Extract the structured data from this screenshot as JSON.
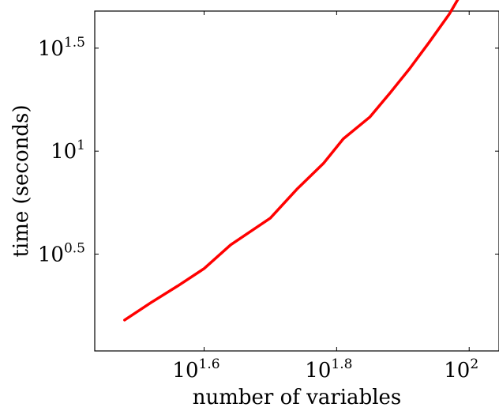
{
  "chart_data": {
    "type": "line",
    "xlabel": "number of variables",
    "ylabel": "time (seconds)",
    "x_scale": "log10",
    "y_scale": "log10",
    "x_ticks": [
      {
        "base": "10",
        "exp": "1.6",
        "value": 1.6
      },
      {
        "base": "10",
        "exp": "1.8",
        "value": 1.8
      },
      {
        "base": "10",
        "exp": "2",
        "value": 2.0
      }
    ],
    "y_ticks": [
      {
        "base": "10",
        "exp": "0.5",
        "value": 0.5
      },
      {
        "base": "10",
        "exp": "1",
        "value": 1.0
      },
      {
        "base": "10",
        "exp": "1.5",
        "value": 1.5
      }
    ],
    "xlim_log10": [
      1.435,
      2.045
    ],
    "ylim_log10": [
      0.03,
      1.68
    ],
    "line_color": "#ff0000",
    "series": [
      {
        "x_log10": [
          1.48,
          1.52,
          1.56,
          1.6,
          1.64,
          1.7,
          1.74,
          1.78,
          1.81,
          1.85,
          1.88,
          1.91,
          1.94,
          1.97,
          2.0
        ],
        "y_log10": [
          0.18,
          0.265,
          0.345,
          0.43,
          0.545,
          0.675,
          0.815,
          0.94,
          1.06,
          1.165,
          1.28,
          1.4,
          1.53,
          1.665,
          1.83
        ]
      }
    ]
  }
}
